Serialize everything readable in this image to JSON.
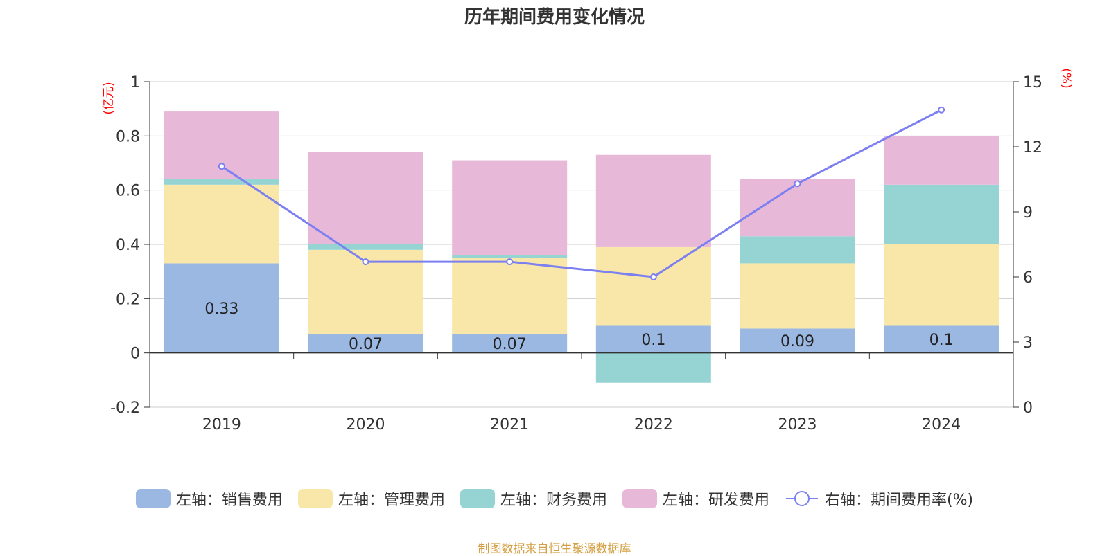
{
  "title": "历年期间费用变化情况",
  "source": "制图数据来自恒生聚源数据库",
  "chart_data": {
    "type": "bar",
    "stacked": true,
    "categories": [
      "2019",
      "2020",
      "2021",
      "2022",
      "2023",
      "2024"
    ],
    "left_axis": {
      "unit": "(亿元)",
      "ylim": [
        -0.2,
        1
      ],
      "ticks": [
        "-0.2",
        "0",
        "0.2",
        "0.4",
        "0.6",
        "0.8",
        "1"
      ]
    },
    "right_axis": {
      "unit": "(%)",
      "ylim": [
        0,
        15
      ],
      "ticks": [
        "0",
        "3",
        "6",
        "9",
        "12",
        "15"
      ]
    },
    "grid": true,
    "legend_position": "bottom",
    "series": [
      {
        "name": "左轴：销售费用",
        "type": "bar",
        "axis": "left",
        "color": "#9bb8e2",
        "values": [
          0.33,
          0.07,
          0.07,
          0.1,
          0.09,
          0.1
        ],
        "labels": [
          "0.33",
          "0.07",
          "0.07",
          "0.1",
          "0.09",
          "0.1"
        ]
      },
      {
        "name": "左轴：管理费用",
        "type": "bar",
        "axis": "left",
        "color": "#f8e7a8",
        "values": [
          0.29,
          0.31,
          0.28,
          0.29,
          0.24,
          0.3
        ]
      },
      {
        "name": "左轴：财务费用",
        "type": "bar",
        "axis": "left",
        "color": "#96d4d4",
        "values": [
          0.02,
          0.02,
          0.01,
          -0.11,
          0.1,
          0.22
        ]
      },
      {
        "name": "左轴：研发费用",
        "type": "bar",
        "axis": "left",
        "color": "#e8b8d8",
        "values": [
          0.25,
          0.34,
          0.35,
          0.34,
          0.21,
          0.18
        ]
      },
      {
        "name": "右轴：期间费用率(%)",
        "type": "line",
        "axis": "right",
        "color": "#7b7ff0",
        "values": [
          11.1,
          6.7,
          6.7,
          6.0,
          10.3,
          13.7
        ]
      }
    ]
  },
  "colors": {
    "unit_label": "#ff0000",
    "source": "#d4a043",
    "axis": "#333333",
    "grid": "#cccccc"
  }
}
